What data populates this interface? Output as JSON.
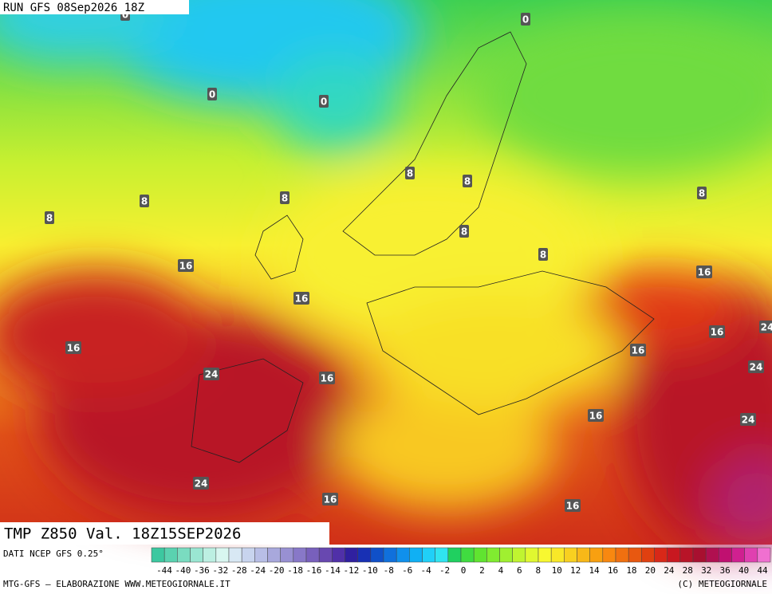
{
  "header": {
    "run": "RUN GFS 08Sep2026 18Z"
  },
  "map": {
    "contour_labels": [
      "0",
      "0",
      "0",
      "0",
      "8",
      "8",
      "8",
      "8",
      "8",
      "8",
      "8",
      "8",
      "16",
      "16",
      "16",
      "16",
      "16",
      "16",
      "16",
      "16",
      "16",
      "16",
      "24",
      "24",
      "24",
      "24",
      "24"
    ]
  },
  "footer": {
    "field": "TMP Z850 Val. 18Z15SEP2026",
    "source": "DATI NCEP GFS 0.25°",
    "credit": "MTG-GFS — ELABORAZIONE WWW.METEOGIORNALE.IT",
    "copyright": "(C) METEOGIORNALE"
  },
  "legend": {
    "labels": [
      "-44",
      "-40",
      "-36",
      "-32",
      "-28",
      "-24",
      "-20",
      "-18",
      "-16",
      "-14",
      "-12",
      "-10",
      "-8",
      "-6",
      "-4",
      "-2",
      "0",
      "2",
      "4",
      "6",
      "8",
      "10",
      "12",
      "14",
      "16",
      "18",
      "20",
      "24",
      "28",
      "32",
      "36",
      "40",
      "44"
    ],
    "colors": [
      "#3cc8a0",
      "#5ad2b0",
      "#7adcc0",
      "#9ae6d2",
      "#bcefe2",
      "#d8f6f0",
      "#d8e8f4",
      "#c8d4ee",
      "#b8bee6",
      "#a8a8dc",
      "#9890d2",
      "#8878c8",
      "#7860bc",
      "#6848b0",
      "#5030a8",
      "#3020a0",
      "#1830b4",
      "#1050c8",
      "#1070dc",
      "#1090ec",
      "#10b0f4",
      "#20d0f8",
      "#30e4f0",
      "#20d060",
      "#40dc40",
      "#60e430",
      "#80ec30",
      "#a0f030",
      "#c0f430",
      "#e0f830",
      "#f8f830",
      "#f8e828",
      "#f8d020",
      "#f8b818",
      "#f8a010",
      "#f88810",
      "#f07010",
      "#e85810",
      "#e04010",
      "#d82818",
      "#c81820",
      "#b81428",
      "#a81030",
      "#b01050",
      "#c01070",
      "#d02090",
      "#e040b0",
      "#f070d0"
    ]
  }
}
